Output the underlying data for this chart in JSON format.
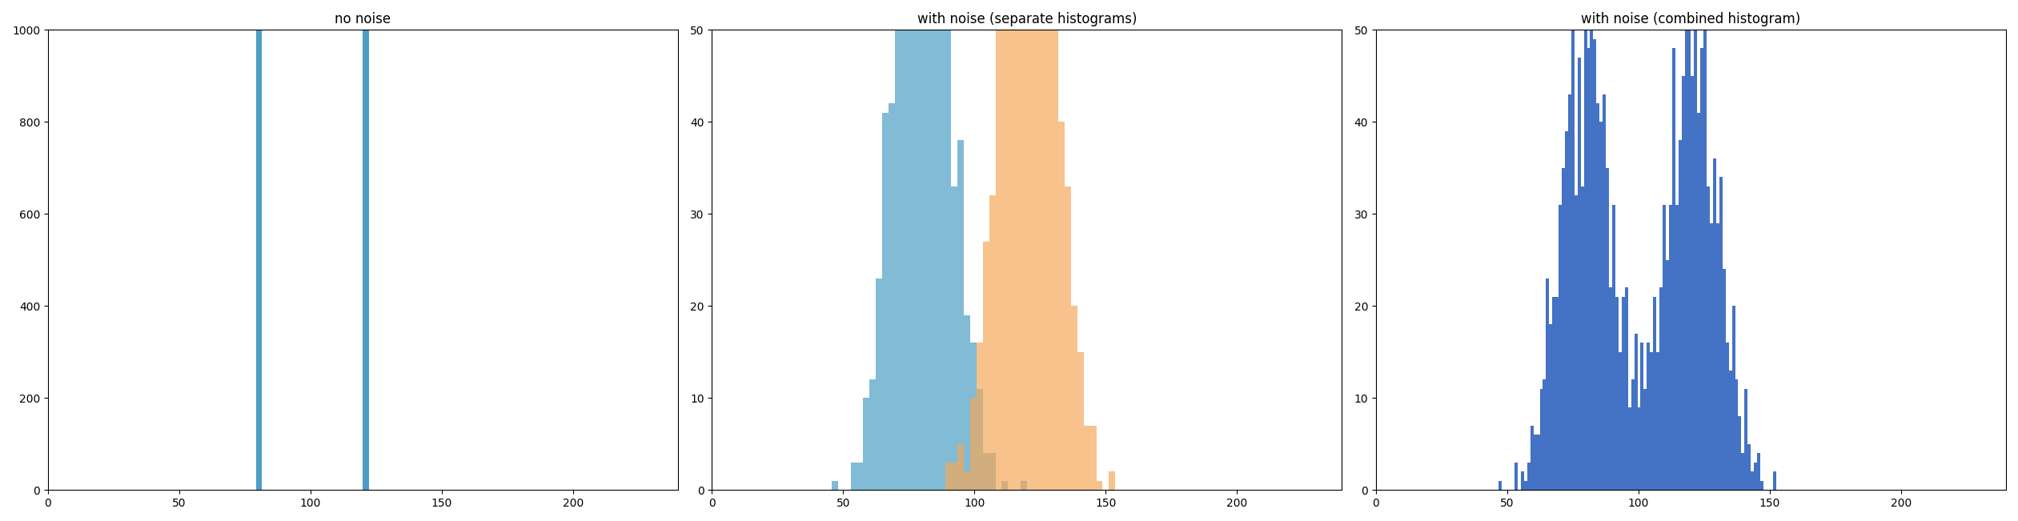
{
  "title1": "no noise",
  "title2": "with noise (separate histograms)",
  "title3": "with noise (combined histogram)",
  "mean1": 80,
  "mean2": 120,
  "n_samples": 1000,
  "noise_std": 10,
  "n_bins": 100,
  "xlim": [
    0,
    240
  ],
  "ylim1": [
    0,
    1000
  ],
  "ylim2": [
    0,
    50
  ],
  "ylim3": [
    0,
    50
  ],
  "color1": "#4C9EC4",
  "color2": "#F5A85A",
  "color_combined": "#4472C4",
  "figsize": [
    25.21,
    6.51
  ],
  "dpi": 100,
  "seed": 42
}
